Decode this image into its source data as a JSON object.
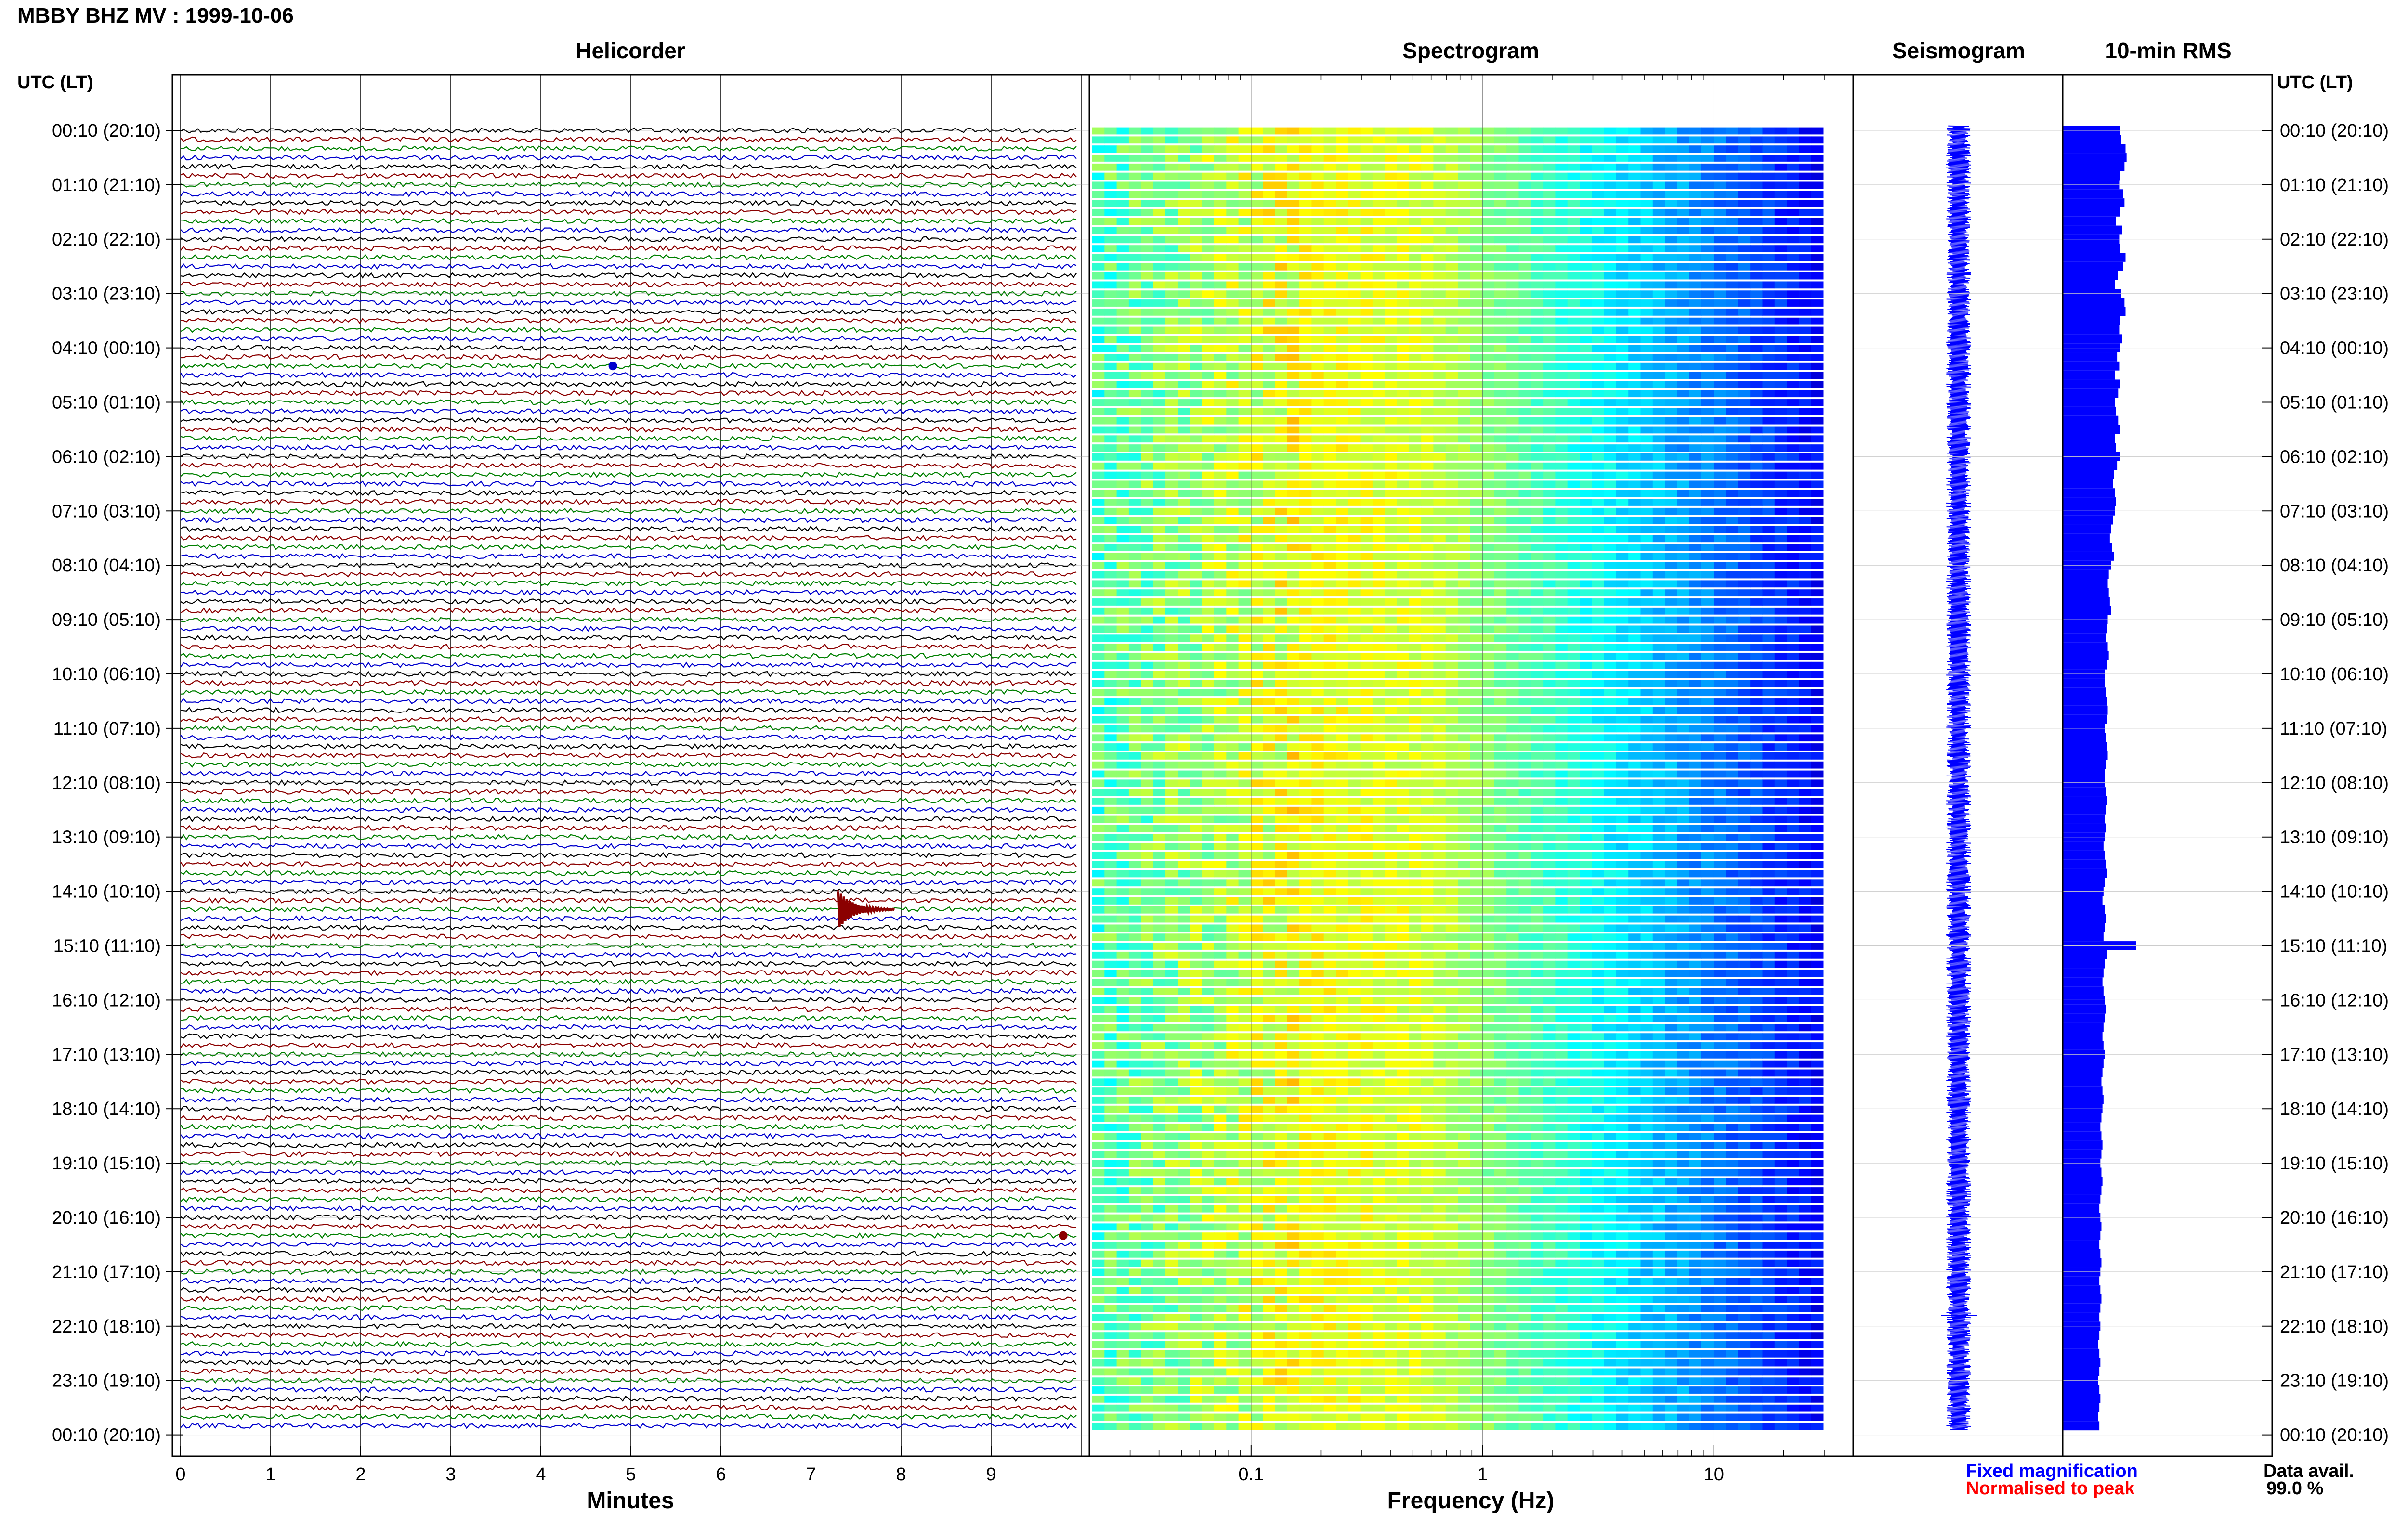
{
  "figure": {
    "title": "MBBY BHZ MV : 1999-10-06",
    "panels": {
      "helicorder": "Helicorder",
      "spectrogram": "Spectrogram",
      "seismogram": "Seismogram",
      "rms": "10-min RMS"
    },
    "time_axis_header": "UTC (LT)",
    "legend": {
      "fixed": "Fixed magnification",
      "normalised": "Normalised to peak",
      "avail_label": "Data avail.",
      "avail_value": "99.0 %"
    },
    "colors": {
      "fixed": "#0000ff",
      "normalised": "#ff0000",
      "trace_cycle": [
        "#000000",
        "#8b0000",
        "#008000",
        "#0000cd"
      ],
      "rms_bar": "#0000ff"
    }
  },
  "chart_data": [
    {
      "type": "line",
      "name": "helicorder",
      "title": "Helicorder",
      "xlabel": "Minutes",
      "x_ticks": [
        "0",
        "1",
        "2",
        "3",
        "4",
        "5",
        "6",
        "7",
        "8",
        "9"
      ],
      "xlim": [
        0,
        10
      ],
      "rows_per_hour": 6,
      "row_count": 144,
      "y_tick_labels": [
        "00:10 (20:10)",
        "01:10 (21:10)",
        "02:10 (22:10)",
        "03:10 (23:10)",
        "04:10 (00:10)",
        "05:10 (01:10)",
        "06:10 (02:10)",
        "07:10 (03:10)",
        "08:10 (04:10)",
        "09:10 (05:10)",
        "10:10 (06:10)",
        "11:10 (07:10)",
        "12:10 (08:10)",
        "13:10 (09:10)",
        "14:10 (10:10)",
        "15:10 (11:10)",
        "16:10 (12:10)",
        "17:10 (13:10)",
        "18:10 (14:10)",
        "19:10 (15:10)",
        "20:10 (16:10)",
        "21:10 (17:10)",
        "22:10 (18:10)",
        "23:10 (19:10)",
        "00:10 (20:10)"
      ],
      "events": [
        {
          "hour": 15,
          "minute": 7.3,
          "note": "event"
        },
        {
          "hour": 5,
          "minute": 4.8,
          "note": "spike"
        },
        {
          "hour": 21,
          "minute": 9.8,
          "note": "spike"
        }
      ]
    },
    {
      "type": "heatmap",
      "name": "spectrogram",
      "title": "Spectrogram",
      "xlabel": "Frequency (Hz)",
      "x_scale": "log",
      "xlim": [
        0.02,
        40
      ],
      "x_tick_labels": [
        "0.1",
        "1",
        "10"
      ]
    },
    {
      "type": "line",
      "name": "seismogram",
      "title": "Seismogram"
    },
    {
      "type": "bar",
      "name": "rms",
      "title": "10-min RMS",
      "orientation": "horizontal",
      "values": [
        1.1,
        1.12,
        1.2,
        1.22,
        1.18,
        1.1,
        1.08,
        1.15,
        1.18,
        1.1,
        1.02,
        1.14,
        1.08,
        1.1,
        1.2,
        1.15,
        1.05,
        1.0,
        1.12,
        1.18,
        1.2,
        1.1,
        1.08,
        1.14,
        1.1,
        1.04,
        1.08,
        1.0,
        1.1,
        1.06,
        1.0,
        1.02,
        1.06,
        1.1,
        1.0,
        1.02,
        1.1,
        1.04,
        0.98,
        0.96,
        1.0,
        1.02,
        1.0,
        0.96,
        0.92,
        0.9,
        0.94,
        0.98,
        0.92,
        0.88,
        0.86,
        0.88,
        0.9,
        0.92,
        0.86,
        0.84,
        0.82,
        0.86,
        0.88,
        0.84,
        0.8,
        0.8,
        0.82,
        0.84,
        0.86,
        0.84,
        0.8,
        0.82,
        0.84,
        0.86,
        0.82,
        0.8,
        0.8,
        0.82,
        0.84,
        0.82,
        0.8,
        0.82,
        0.8,
        0.78,
        0.8,
        0.82,
        0.84,
        0.8,
        0.78,
        0.76,
        0.8,
        0.82,
        0.8,
        0.78,
        1.4,
        0.84,
        0.8,
        0.78,
        0.76,
        0.78,
        0.8,
        0.82,
        0.8,
        0.78,
        0.76,
        0.78,
        0.8,
        0.78,
        0.76,
        0.74,
        0.76,
        0.78,
        0.76,
        0.74,
        0.72,
        0.74,
        0.76,
        0.74,
        0.72,
        0.74,
        0.76,
        0.74,
        0.72,
        0.7,
        0.72,
        0.74,
        0.72,
        0.7,
        0.72,
        0.74,
        0.72,
        0.7,
        0.72,
        0.74,
        0.72,
        0.7,
        0.72,
        0.7,
        0.68,
        0.7,
        0.72,
        0.7,
        0.68,
        0.7,
        0.72,
        0.7,
        0.68,
        0.7
      ]
    }
  ]
}
